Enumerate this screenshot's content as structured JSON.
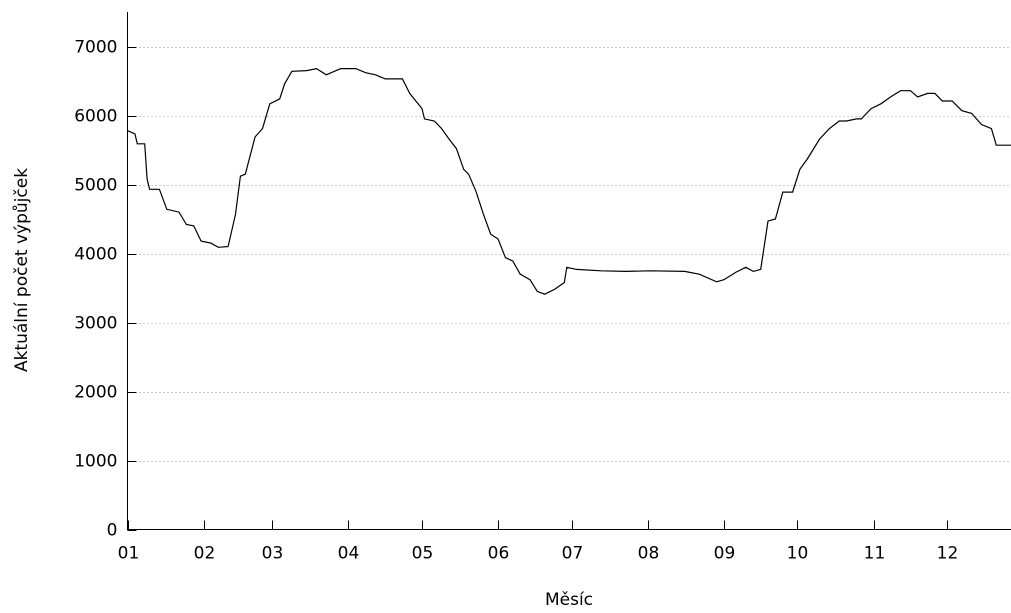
{
  "chart_data": {
    "type": "line",
    "x_label": "Měsíc",
    "y_label": "Aktuální počet výpůjček",
    "xlim": [
      0,
      360
    ],
    "xticks": [
      {
        "value": 0,
        "label": "01"
      },
      {
        "value": 31,
        "label": "02"
      },
      {
        "value": 59,
        "label": "03"
      },
      {
        "value": 90,
        "label": "04"
      },
      {
        "value": 120,
        "label": "05"
      },
      {
        "value": 151,
        "label": "06"
      },
      {
        "value": 181,
        "label": "07"
      },
      {
        "value": 212,
        "label": "08"
      },
      {
        "value": 243,
        "label": "09"
      },
      {
        "value": 273,
        "label": "10"
      },
      {
        "value": 304,
        "label": "11"
      },
      {
        "value": 334,
        "label": "12"
      }
    ],
    "ylim": [
      0,
      7500
    ],
    "yticks": [
      0,
      1000,
      2000,
      3000,
      4000,
      5000,
      6000,
      7000
    ],
    "grid": true,
    "series": [
      {
        "color": "#000000",
        "x": [
          0,
          3,
          4,
          7,
          8,
          9,
          13,
          16,
          21,
          24,
          27,
          30,
          34,
          37,
          41,
          44,
          46,
          48,
          52,
          55,
          58,
          62,
          64,
          67,
          73,
          77,
          81,
          85,
          87,
          93,
          97,
          101,
          105,
          109,
          112,
          115,
          120,
          121,
          125,
          128,
          131,
          134,
          137,
          139,
          142,
          145,
          148,
          151,
          154,
          157,
          160,
          164,
          167,
          170,
          174,
          178,
          179,
          183,
          193,
          203,
          213,
          227,
          233,
          240,
          243,
          248,
          252,
          255,
          258,
          261,
          264,
          267,
          271,
          274,
          277,
          282,
          286,
          290,
          293,
          297,
          299,
          303,
          307,
          311,
          315,
          319,
          322,
          326,
          329,
          332,
          336,
          340,
          344,
          348,
          352,
          354,
          360
        ],
        "values": [
          5780,
          5735,
          5590,
          5590,
          5080,
          4930,
          4930,
          4640,
          4600,
          4420,
          4400,
          4180,
          4150,
          4090,
          4100,
          4570,
          5120,
          5150,
          5690,
          5810,
          6170,
          6240,
          6460,
          6640,
          6650,
          6680,
          6590,
          6650,
          6680,
          6680,
          6620,
          6590,
          6530,
          6530,
          6530,
          6320,
          6100,
          5950,
          5920,
          5810,
          5660,
          5520,
          5220,
          5150,
          4900,
          4570,
          4280,
          4210,
          3940,
          3890,
          3700,
          3620,
          3450,
          3410,
          3480,
          3580,
          3800,
          3770,
          3750,
          3740,
          3750,
          3740,
          3700,
          3590,
          3620,
          3730,
          3800,
          3740,
          3770,
          4470,
          4500,
          4890,
          4890,
          5220,
          5370,
          5660,
          5810,
          5920,
          5920,
          5950,
          5950,
          6100,
          6170,
          6270,
          6360,
          6360,
          6270,
          6320,
          6320,
          6210,
          6210,
          6070,
          6030,
          5870,
          5810,
          5570,
          5570
        ]
      }
    ]
  }
}
